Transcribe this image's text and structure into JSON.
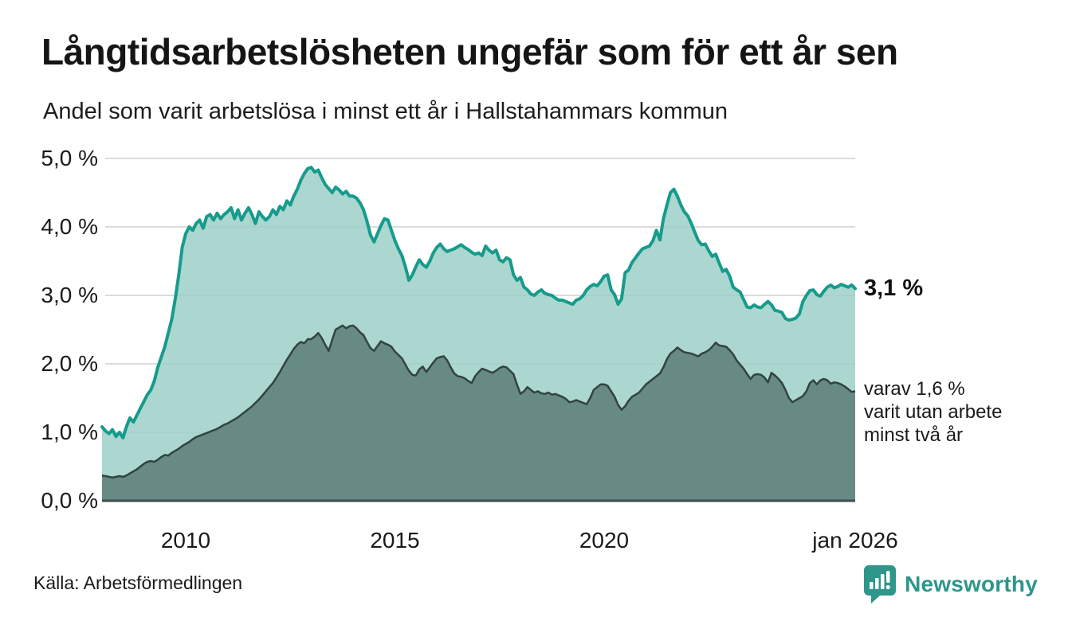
{
  "header": {
    "title": "Långtidsarbetslösheten ungefär som för ett år sen",
    "subtitle": "Andel som varit arbetslösa i minst ett år i Hallstahammars kommun"
  },
  "annotations": {
    "latest_value": "3,1 %",
    "secondary_lines": [
      "varav 1,6 %",
      "varit utan arbete",
      "minst två år"
    ]
  },
  "source": {
    "label": "Källa: Arbetsförmedlingen"
  },
  "branding": {
    "name": "Newsworthy",
    "icon": "newsworthy-speech-bubble-bar-chart-icon",
    "color": "#2e968b"
  },
  "colors": {
    "line_1year": "#169b8c",
    "fill_1year": "#9cd0c8",
    "line_2year": "#324340",
    "fill_2year": "#5f827c",
    "gridline": "#dcdcdc",
    "axis_baseline": "#3f4f4b",
    "text": "#1a1a1a"
  },
  "chart_data": {
    "type": "area",
    "title": "Långtidsarbetslösheten ungefär som för ett år sen",
    "subtitle": "Andel som varit arbetslösa i minst ett år i Hallstahammars kommun",
    "unit": "%",
    "x_start": "2008-01",
    "x_end": "2026-01",
    "x_interval": "monthly",
    "ylim": [
      0,
      5
    ],
    "grid": true,
    "legend": "none",
    "y_ticks": [
      {
        "label": "5,0 %",
        "value": 5
      },
      {
        "label": "4,0 %",
        "value": 4
      },
      {
        "label": "3,0 %",
        "value": 3
      },
      {
        "label": "2,0 %",
        "value": 2
      },
      {
        "label": "1,0 %",
        "value": 1
      },
      {
        "label": "0,0 %",
        "value": 0
      }
    ],
    "x_ticks": [
      {
        "label": "2010",
        "month_index": 24
      },
      {
        "label": "2015",
        "month_index": 84
      },
      {
        "label": "2020",
        "month_index": 144
      },
      {
        "label": "jan 2026",
        "month_index": 216
      }
    ],
    "series": [
      {
        "name": "Arbetslösa minst ett år",
        "latest_label": "3,1 %",
        "values": [
          1.08,
          1.02,
          0.98,
          1.04,
          0.94,
          1.0,
          0.92,
          1.08,
          1.21,
          1.15,
          1.25,
          1.35,
          1.45,
          1.55,
          1.62,
          1.75,
          1.95,
          2.1,
          2.25,
          2.45,
          2.65,
          2.95,
          3.3,
          3.7,
          3.9,
          4.0,
          3.95,
          4.05,
          4.1,
          3.98,
          4.15,
          4.18,
          4.1,
          4.2,
          4.12,
          4.18,
          4.22,
          4.28,
          4.12,
          4.25,
          4.1,
          4.2,
          4.28,
          4.18,
          4.05,
          4.22,
          4.15,
          4.1,
          4.15,
          4.25,
          4.18,
          4.3,
          4.25,
          4.38,
          4.32,
          4.45,
          4.55,
          4.68,
          4.78,
          4.85,
          4.87,
          4.8,
          4.83,
          4.72,
          4.62,
          4.56,
          4.5,
          4.58,
          4.54,
          4.48,
          4.52,
          4.45,
          4.45,
          4.42,
          4.35,
          4.25,
          4.08,
          3.88,
          3.78,
          3.9,
          4.02,
          4.12,
          4.1,
          3.95,
          3.8,
          3.68,
          3.58,
          3.42,
          3.22,
          3.3,
          3.42,
          3.52,
          3.45,
          3.41,
          3.5,
          3.62,
          3.7,
          3.75,
          3.68,
          3.64,
          3.66,
          3.68,
          3.71,
          3.74,
          3.7,
          3.67,
          3.63,
          3.6,
          3.62,
          3.58,
          3.72,
          3.66,
          3.62,
          3.66,
          3.52,
          3.49,
          3.55,
          3.52,
          3.3,
          3.22,
          3.26,
          3.12,
          3.08,
          3.02,
          3.0,
          3.05,
          3.08,
          3.03,
          3.01,
          3.0,
          2.96,
          2.93,
          2.93,
          2.91,
          2.89,
          2.87,
          2.93,
          2.95,
          3.0,
          3.08,
          3.13,
          3.16,
          3.14,
          3.2,
          3.28,
          3.3,
          3.08,
          3.01,
          2.87,
          2.95,
          3.33,
          3.37,
          3.48,
          3.55,
          3.62,
          3.68,
          3.7,
          3.72,
          3.8,
          3.95,
          3.81,
          4.12,
          4.32,
          4.5,
          4.55,
          4.45,
          4.32,
          4.22,
          4.16,
          4.05,
          3.92,
          3.8,
          3.74,
          3.75,
          3.65,
          3.57,
          3.6,
          3.47,
          3.35,
          3.38,
          3.28,
          3.12,
          3.08,
          3.05,
          2.94,
          2.83,
          2.82,
          2.86,
          2.83,
          2.82,
          2.87,
          2.91,
          2.86,
          2.78,
          2.77,
          2.75,
          2.66,
          2.64,
          2.65,
          2.67,
          2.73,
          2.91,
          3.0,
          3.07,
          3.08,
          3.01,
          2.99,
          3.06,
          3.12,
          3.15,
          3.11,
          3.13,
          3.16,
          3.14,
          3.12,
          3.15,
          3.1
        ]
      },
      {
        "name": "varav arbetslösa minst två år",
        "latest_label": "1,6 %",
        "values": [
          0.37,
          0.36,
          0.35,
          0.34,
          0.35,
          0.36,
          0.35,
          0.37,
          0.4,
          0.43,
          0.46,
          0.5,
          0.54,
          0.57,
          0.58,
          0.57,
          0.6,
          0.64,
          0.67,
          0.66,
          0.7,
          0.73,
          0.76,
          0.8,
          0.83,
          0.86,
          0.9,
          0.93,
          0.95,
          0.97,
          0.99,
          1.01,
          1.03,
          1.05,
          1.08,
          1.11,
          1.13,
          1.16,
          1.19,
          1.22,
          1.26,
          1.3,
          1.34,
          1.38,
          1.43,
          1.48,
          1.54,
          1.6,
          1.66,
          1.72,
          1.8,
          1.88,
          1.97,
          2.06,
          2.14,
          2.22,
          2.28,
          2.32,
          2.3,
          2.36,
          2.36,
          2.4,
          2.45,
          2.38,
          2.28,
          2.19,
          2.35,
          2.5,
          2.53,
          2.56,
          2.52,
          2.55,
          2.56,
          2.52,
          2.46,
          2.42,
          2.32,
          2.23,
          2.19,
          2.26,
          2.33,
          2.3,
          2.28,
          2.25,
          2.18,
          2.13,
          2.08,
          1.99,
          1.9,
          1.84,
          1.83,
          1.92,
          1.96,
          1.88,
          1.95,
          2.02,
          2.08,
          2.1,
          2.11,
          2.05,
          1.95,
          1.86,
          1.82,
          1.81,
          1.79,
          1.75,
          1.72,
          1.82,
          1.88,
          1.93,
          1.91,
          1.89,
          1.87,
          1.9,
          1.94,
          1.96,
          1.95,
          1.9,
          1.85,
          1.7,
          1.56,
          1.6,
          1.66,
          1.62,
          1.58,
          1.6,
          1.57,
          1.56,
          1.58,
          1.55,
          1.56,
          1.54,
          1.52,
          1.49,
          1.44,
          1.45,
          1.47,
          1.45,
          1.43,
          1.41,
          1.5,
          1.62,
          1.66,
          1.7,
          1.7,
          1.68,
          1.6,
          1.52,
          1.4,
          1.33,
          1.38,
          1.46,
          1.52,
          1.55,
          1.58,
          1.64,
          1.7,
          1.74,
          1.78,
          1.82,
          1.86,
          1.95,
          2.07,
          2.15,
          2.19,
          2.24,
          2.2,
          2.17,
          2.16,
          2.15,
          2.13,
          2.11,
          2.15,
          2.17,
          2.2,
          2.25,
          2.31,
          2.27,
          2.26,
          2.25,
          2.2,
          2.14,
          2.05,
          1.99,
          1.93,
          1.85,
          1.78,
          1.84,
          1.85,
          1.84,
          1.8,
          1.73,
          1.87,
          1.83,
          1.78,
          1.72,
          1.62,
          1.5,
          1.44,
          1.47,
          1.5,
          1.53,
          1.6,
          1.72,
          1.76,
          1.7,
          1.76,
          1.78,
          1.76,
          1.71,
          1.73,
          1.72,
          1.7,
          1.67,
          1.63,
          1.59,
          1.6
        ]
      }
    ]
  }
}
